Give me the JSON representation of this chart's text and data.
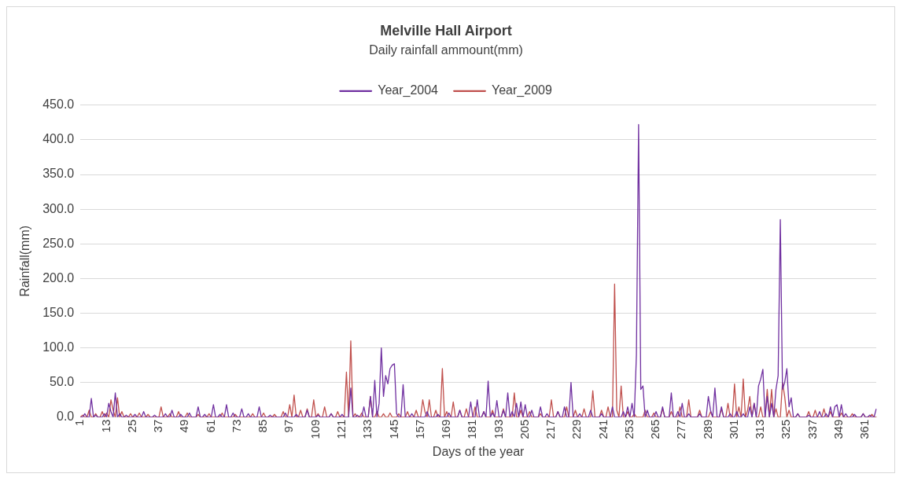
{
  "chart_data": {
    "type": "line",
    "title": "Melville Hall Airport",
    "subtitle": "Daily rainfall ammount(mm)",
    "xlabel": "Days of the year",
    "ylabel": "Rainfall(mm)",
    "categories": [
      "1",
      null,
      null,
      null,
      null,
      null,
      null,
      null,
      null,
      null,
      null,
      null,
      "13",
      null,
      null,
      null,
      null,
      null,
      null,
      null,
      null,
      null,
      null,
      null,
      "25",
      null,
      null,
      null,
      null,
      null,
      null,
      null,
      null,
      null,
      null,
      null,
      "37",
      null,
      null,
      null,
      null,
      null,
      null,
      null,
      null,
      null,
      null,
      null,
      "49",
      null,
      null,
      null,
      null,
      null,
      null,
      null,
      null,
      null,
      null,
      null,
      "61",
      null,
      null,
      null,
      null,
      null,
      null,
      null,
      null,
      null,
      null,
      null,
      "73",
      null,
      null,
      null,
      null,
      null,
      null,
      null,
      null,
      null,
      null,
      null,
      "85",
      null,
      null,
      null,
      null,
      null,
      null,
      null,
      null,
      null,
      null,
      null,
      "97",
      null,
      null,
      null,
      null,
      null,
      null,
      null,
      null,
      null,
      null,
      null,
      "109",
      null,
      null,
      null,
      null,
      null,
      null,
      null,
      null,
      null,
      null,
      null,
      "121",
      null,
      null,
      null,
      null,
      null,
      null,
      null,
      null,
      null,
      null,
      null,
      "133",
      null,
      null,
      null,
      null,
      null,
      null,
      null,
      null,
      null,
      null,
      null,
      "145",
      null,
      null,
      null,
      null,
      null,
      null,
      null,
      null,
      null,
      null,
      null,
      "157",
      null,
      null,
      null,
      null,
      null,
      null,
      null,
      null,
      null,
      null,
      null,
      "169",
      null,
      null,
      null,
      null,
      null,
      null,
      null,
      null,
      null,
      null,
      null,
      "181",
      null,
      null,
      null,
      null,
      null,
      null,
      null,
      null,
      null,
      null,
      null,
      "193",
      null,
      null,
      null,
      null,
      null,
      null,
      null,
      null,
      null,
      null,
      null,
      "205",
      null,
      null,
      null,
      null,
      null,
      null,
      null,
      null,
      null,
      null,
      null,
      "217",
      null,
      null,
      null,
      null,
      null,
      null,
      null,
      null,
      null,
      null,
      null,
      "229",
      null,
      null,
      null,
      null,
      null,
      null,
      null,
      null,
      null,
      null,
      null,
      "241",
      null,
      null,
      null,
      null,
      null,
      null,
      null,
      null,
      null,
      null,
      null,
      "253",
      null,
      null,
      null,
      null,
      null,
      null,
      null,
      null,
      null,
      null,
      null,
      "265",
      null,
      null,
      null,
      null,
      null,
      null,
      null,
      null,
      null,
      null,
      null,
      "277",
      null,
      null,
      null,
      null,
      null,
      null,
      null,
      null,
      null,
      null,
      null,
      "289",
      null,
      null,
      null,
      null,
      null,
      null,
      null,
      null,
      null,
      null,
      null,
      "301",
      null,
      null,
      null,
      null,
      null,
      null,
      null,
      null,
      null,
      null,
      null,
      "313",
      null,
      null,
      null,
      null,
      null,
      null,
      null,
      null,
      null,
      null,
      null,
      "325",
      null,
      null,
      null,
      null,
      null,
      null,
      null,
      null,
      null,
      null,
      null,
      "337",
      null,
      null,
      null,
      null,
      null,
      null,
      null,
      null,
      null,
      null,
      null,
      "349",
      null,
      null,
      null,
      null,
      null,
      null,
      null,
      null,
      null,
      null,
      null,
      "361",
      null,
      null,
      null,
      null,
      null
    ],
    "series": [
      {
        "name": "Year_2004",
        "color": "#7030a0",
        "values": [
          0,
          0,
          5,
          0,
          0,
          27,
          0,
          3,
          0,
          0,
          0,
          5,
          0,
          20,
          8,
          0,
          35,
          0,
          5,
          0,
          0,
          3,
          0,
          0,
          0,
          4,
          0,
          0,
          0,
          8,
          0,
          0,
          0,
          0,
          3,
          0,
          0,
          0,
          0,
          5,
          0,
          0,
          10,
          0,
          0,
          0,
          4,
          0,
          0,
          0,
          6,
          0,
          0,
          0,
          15,
          0,
          0,
          4,
          0,
          0,
          0,
          18,
          0,
          0,
          4,
          0,
          0,
          18,
          0,
          0,
          6,
          0,
          0,
          0,
          12,
          0,
          0,
          5,
          0,
          0,
          0,
          0,
          15,
          0,
          0,
          0,
          0,
          3,
          0,
          0,
          0,
          0,
          0,
          0,
          6,
          0,
          0,
          0,
          0,
          4,
          0,
          0,
          0,
          0,
          10,
          0,
          0,
          0,
          0,
          3,
          0,
          0,
          0,
          0,
          0,
          5,
          0,
          0,
          0,
          0,
          4,
          0,
          0,
          0,
          42,
          0,
          0,
          3,
          0,
          0,
          15,
          0,
          0,
          30,
          0,
          53,
          0,
          20,
          100,
          30,
          60,
          48,
          70,
          75,
          77,
          5,
          0,
          0,
          47,
          0,
          0,
          0,
          5,
          0,
          0,
          0,
          0,
          0,
          0,
          8,
          0,
          0,
          0,
          0,
          4,
          0,
          0,
          0,
          0,
          6,
          0,
          0,
          0,
          0,
          10,
          0,
          0,
          0,
          0,
          22,
          0,
          0,
          25,
          0,
          0,
          8,
          0,
          52,
          0,
          6,
          0,
          24,
          0,
          0,
          10,
          0,
          35,
          0,
          8,
          0,
          20,
          0,
          22,
          0,
          18,
          0,
          0,
          10,
          0,
          0,
          0,
          15,
          0,
          0,
          5,
          0,
          0,
          0,
          0,
          8,
          0,
          0,
          15,
          0,
          0,
          50,
          0,
          0,
          0,
          5,
          0,
          0,
          0,
          0,
          10,
          0,
          0,
          0,
          0,
          5,
          0,
          0,
          0,
          0,
          15,
          0,
          0,
          0,
          0,
          8,
          0,
          15,
          0,
          20,
          0,
          90,
          422,
          40,
          45,
          0,
          10,
          0,
          0,
          0,
          8,
          0,
          0,
          15,
          0,
          0,
          0,
          35,
          0,
          0,
          8,
          0,
          20,
          0,
          0,
          5,
          0,
          0,
          0,
          0,
          5,
          0,
          0,
          0,
          30,
          10,
          0,
          42,
          0,
          0,
          15,
          0,
          0,
          0,
          5,
          0,
          0,
          8,
          0,
          0,
          5,
          0,
          0,
          15,
          0,
          20,
          0,
          45,
          55,
          69,
          0,
          30,
          0,
          20,
          0,
          40,
          60,
          285,
          40,
          50,
          70,
          15,
          28,
          0,
          0,
          5,
          0,
          0,
          0,
          0,
          3,
          0,
          0,
          0,
          0,
          8,
          0,
          0,
          5,
          0,
          15,
          0,
          15,
          18,
          0,
          18,
          0,
          5,
          0,
          0,
          0,
          4,
          0,
          0,
          0,
          5,
          0,
          0,
          3,
          0,
          0,
          12
        ]
      },
      {
        "name": "Year_2009",
        "color": "#c0504d",
        "values": [
          0,
          3,
          0,
          0,
          10,
          0,
          0,
          5,
          0,
          0,
          8,
          0,
          6,
          0,
          25,
          10,
          0,
          28,
          0,
          8,
          0,
          0,
          0,
          5,
          0,
          0,
          0,
          6,
          0,
          0,
          0,
          4,
          0,
          0,
          0,
          0,
          0,
          15,
          0,
          0,
          0,
          5,
          0,
          0,
          0,
          8,
          0,
          0,
          0,
          6,
          0,
          0,
          0,
          0,
          4,
          0,
          0,
          0,
          0,
          5,
          0,
          0,
          0,
          0,
          0,
          6,
          0,
          0,
          0,
          0,
          0,
          4,
          0,
          0,
          0,
          0,
          0,
          0,
          0,
          5,
          0,
          0,
          0,
          0,
          6,
          0,
          0,
          0,
          0,
          4,
          0,
          0,
          0,
          8,
          0,
          0,
          18,
          0,
          32,
          0,
          0,
          10,
          0,
          0,
          12,
          0,
          0,
          25,
          0,
          5,
          0,
          0,
          15,
          0,
          0,
          5,
          0,
          0,
          8,
          0,
          0,
          0,
          65,
          0,
          110,
          0,
          5,
          0,
          0,
          6,
          0,
          0,
          0,
          30,
          0,
          0,
          8,
          0,
          0,
          5,
          0,
          0,
          6,
          0,
          0,
          0,
          5,
          0,
          0,
          0,
          8,
          0,
          0,
          0,
          10,
          0,
          0,
          25,
          8,
          0,
          25,
          0,
          0,
          10,
          0,
          0,
          70,
          0,
          8,
          0,
          0,
          22,
          0,
          0,
          10,
          0,
          0,
          12,
          0,
          0,
          0,
          15,
          0,
          0,
          0,
          8,
          0,
          0,
          0,
          10,
          0,
          0,
          0,
          0,
          12,
          0,
          0,
          0,
          0,
          35,
          0,
          0,
          10,
          0,
          0,
          0,
          8,
          0,
          0,
          0,
          0,
          5,
          0,
          0,
          0,
          0,
          25,
          0,
          0,
          8,
          0,
          0,
          0,
          15,
          0,
          0,
          0,
          10,
          0,
          0,
          0,
          12,
          0,
          0,
          0,
          38,
          0,
          0,
          0,
          10,
          0,
          0,
          15,
          0,
          0,
          192,
          10,
          0,
          45,
          0,
          0,
          8,
          0,
          0,
          5,
          0,
          0,
          0,
          0,
          10,
          0,
          0,
          0,
          6,
          0,
          0,
          0,
          12,
          0,
          0,
          0,
          8,
          0,
          0,
          0,
          15,
          0,
          0,
          0,
          25,
          0,
          0,
          0,
          0,
          10,
          0,
          0,
          0,
          0,
          8,
          0,
          0,
          0,
          0,
          12,
          0,
          0,
          20,
          0,
          0,
          48,
          0,
          15,
          0,
          55,
          0,
          10,
          30,
          0,
          20,
          0,
          0,
          15,
          0,
          0,
          40,
          0,
          40,
          0,
          12,
          0,
          0,
          50,
          30,
          0,
          10,
          0,
          0,
          0,
          5,
          0,
          0,
          0,
          0,
          8,
          0,
          0,
          10,
          0,
          0,
          0,
          12,
          0,
          0,
          8,
          0,
          0,
          0,
          0,
          6,
          0,
          0,
          0,
          0,
          5,
          0,
          0,
          0,
          0,
          5,
          0,
          0,
          0,
          4,
          0,
          0
        ]
      }
    ],
    "ylim": [
      0,
      450
    ],
    "yticks": [
      {
        "value": 0,
        "label": "0.0"
      },
      {
        "value": 50,
        "label": "50.0"
      },
      {
        "value": 100,
        "label": "100.0"
      },
      {
        "value": 150,
        "label": "150.0"
      },
      {
        "value": 200,
        "label": "200.0"
      },
      {
        "value": 250,
        "label": "250.0"
      },
      {
        "value": 300,
        "label": "300.0"
      },
      {
        "value": 350,
        "label": "350.0"
      },
      {
        "value": 400,
        "label": "400.0"
      },
      {
        "value": 450,
        "label": "450.0"
      }
    ],
    "grid": "y",
    "legend": "top",
    "marker": "none",
    "line_style": "solid"
  }
}
